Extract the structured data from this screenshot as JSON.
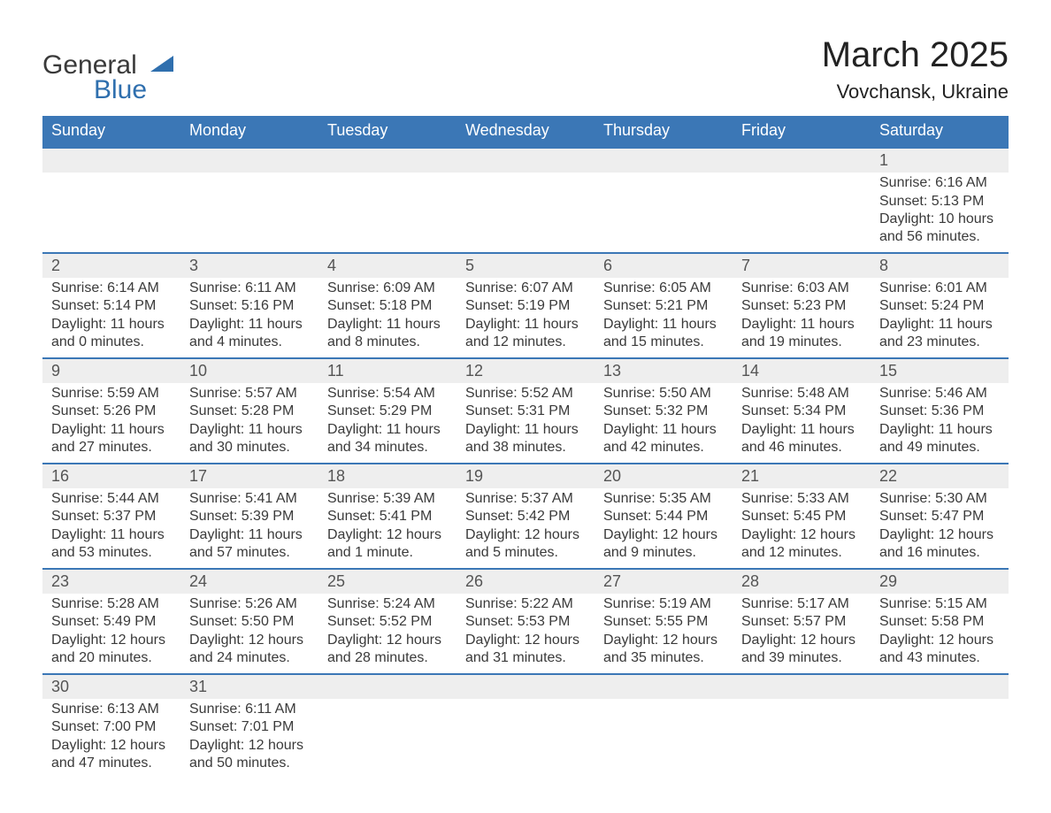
{
  "logo": {
    "line1": "General",
    "line2": "Blue"
  },
  "header": {
    "title": "March 2025",
    "location": "Vovchansk, Ukraine"
  },
  "style": {
    "accent": "#3b77b6",
    "row_bg": "#eeeeee",
    "text": "#3a3a3a",
    "title_fontsize": 40,
    "header_fontsize": 18,
    "cell_fontsize": 16
  },
  "calendar": {
    "columns": [
      "Sunday",
      "Monday",
      "Tuesday",
      "Wednesday",
      "Thursday",
      "Friday",
      "Saturday"
    ],
    "weeks": [
      [
        null,
        null,
        null,
        null,
        null,
        null,
        {
          "day": "1",
          "sunrise": "Sunrise: 6:16 AM",
          "sunset": "Sunset: 5:13 PM",
          "daylight1": "Daylight: 10 hours",
          "daylight2": "and 56 minutes."
        }
      ],
      [
        {
          "day": "2",
          "sunrise": "Sunrise: 6:14 AM",
          "sunset": "Sunset: 5:14 PM",
          "daylight1": "Daylight: 11 hours",
          "daylight2": "and 0 minutes."
        },
        {
          "day": "3",
          "sunrise": "Sunrise: 6:11 AM",
          "sunset": "Sunset: 5:16 PM",
          "daylight1": "Daylight: 11 hours",
          "daylight2": "and 4 minutes."
        },
        {
          "day": "4",
          "sunrise": "Sunrise: 6:09 AM",
          "sunset": "Sunset: 5:18 PM",
          "daylight1": "Daylight: 11 hours",
          "daylight2": "and 8 minutes."
        },
        {
          "day": "5",
          "sunrise": "Sunrise: 6:07 AM",
          "sunset": "Sunset: 5:19 PM",
          "daylight1": "Daylight: 11 hours",
          "daylight2": "and 12 minutes."
        },
        {
          "day": "6",
          "sunrise": "Sunrise: 6:05 AM",
          "sunset": "Sunset: 5:21 PM",
          "daylight1": "Daylight: 11 hours",
          "daylight2": "and 15 minutes."
        },
        {
          "day": "7",
          "sunrise": "Sunrise: 6:03 AM",
          "sunset": "Sunset: 5:23 PM",
          "daylight1": "Daylight: 11 hours",
          "daylight2": "and 19 minutes."
        },
        {
          "day": "8",
          "sunrise": "Sunrise: 6:01 AM",
          "sunset": "Sunset: 5:24 PM",
          "daylight1": "Daylight: 11 hours",
          "daylight2": "and 23 minutes."
        }
      ],
      [
        {
          "day": "9",
          "sunrise": "Sunrise: 5:59 AM",
          "sunset": "Sunset: 5:26 PM",
          "daylight1": "Daylight: 11 hours",
          "daylight2": "and 27 minutes."
        },
        {
          "day": "10",
          "sunrise": "Sunrise: 5:57 AM",
          "sunset": "Sunset: 5:28 PM",
          "daylight1": "Daylight: 11 hours",
          "daylight2": "and 30 minutes."
        },
        {
          "day": "11",
          "sunrise": "Sunrise: 5:54 AM",
          "sunset": "Sunset: 5:29 PM",
          "daylight1": "Daylight: 11 hours",
          "daylight2": "and 34 minutes."
        },
        {
          "day": "12",
          "sunrise": "Sunrise: 5:52 AM",
          "sunset": "Sunset: 5:31 PM",
          "daylight1": "Daylight: 11 hours",
          "daylight2": "and 38 minutes."
        },
        {
          "day": "13",
          "sunrise": "Sunrise: 5:50 AM",
          "sunset": "Sunset: 5:32 PM",
          "daylight1": "Daylight: 11 hours",
          "daylight2": "and 42 minutes."
        },
        {
          "day": "14",
          "sunrise": "Sunrise: 5:48 AM",
          "sunset": "Sunset: 5:34 PM",
          "daylight1": "Daylight: 11 hours",
          "daylight2": "and 46 minutes."
        },
        {
          "day": "15",
          "sunrise": "Sunrise: 5:46 AM",
          "sunset": "Sunset: 5:36 PM",
          "daylight1": "Daylight: 11 hours",
          "daylight2": "and 49 minutes."
        }
      ],
      [
        {
          "day": "16",
          "sunrise": "Sunrise: 5:44 AM",
          "sunset": "Sunset: 5:37 PM",
          "daylight1": "Daylight: 11 hours",
          "daylight2": "and 53 minutes."
        },
        {
          "day": "17",
          "sunrise": "Sunrise: 5:41 AM",
          "sunset": "Sunset: 5:39 PM",
          "daylight1": "Daylight: 11 hours",
          "daylight2": "and 57 minutes."
        },
        {
          "day": "18",
          "sunrise": "Sunrise: 5:39 AM",
          "sunset": "Sunset: 5:41 PM",
          "daylight1": "Daylight: 12 hours",
          "daylight2": "and 1 minute."
        },
        {
          "day": "19",
          "sunrise": "Sunrise: 5:37 AM",
          "sunset": "Sunset: 5:42 PM",
          "daylight1": "Daylight: 12 hours",
          "daylight2": "and 5 minutes."
        },
        {
          "day": "20",
          "sunrise": "Sunrise: 5:35 AM",
          "sunset": "Sunset: 5:44 PM",
          "daylight1": "Daylight: 12 hours",
          "daylight2": "and 9 minutes."
        },
        {
          "day": "21",
          "sunrise": "Sunrise: 5:33 AM",
          "sunset": "Sunset: 5:45 PM",
          "daylight1": "Daylight: 12 hours",
          "daylight2": "and 12 minutes."
        },
        {
          "day": "22",
          "sunrise": "Sunrise: 5:30 AM",
          "sunset": "Sunset: 5:47 PM",
          "daylight1": "Daylight: 12 hours",
          "daylight2": "and 16 minutes."
        }
      ],
      [
        {
          "day": "23",
          "sunrise": "Sunrise: 5:28 AM",
          "sunset": "Sunset: 5:49 PM",
          "daylight1": "Daylight: 12 hours",
          "daylight2": "and 20 minutes."
        },
        {
          "day": "24",
          "sunrise": "Sunrise: 5:26 AM",
          "sunset": "Sunset: 5:50 PM",
          "daylight1": "Daylight: 12 hours",
          "daylight2": "and 24 minutes."
        },
        {
          "day": "25",
          "sunrise": "Sunrise: 5:24 AM",
          "sunset": "Sunset: 5:52 PM",
          "daylight1": "Daylight: 12 hours",
          "daylight2": "and 28 minutes."
        },
        {
          "day": "26",
          "sunrise": "Sunrise: 5:22 AM",
          "sunset": "Sunset: 5:53 PM",
          "daylight1": "Daylight: 12 hours",
          "daylight2": "and 31 minutes."
        },
        {
          "day": "27",
          "sunrise": "Sunrise: 5:19 AM",
          "sunset": "Sunset: 5:55 PM",
          "daylight1": "Daylight: 12 hours",
          "daylight2": "and 35 minutes."
        },
        {
          "day": "28",
          "sunrise": "Sunrise: 5:17 AM",
          "sunset": "Sunset: 5:57 PM",
          "daylight1": "Daylight: 12 hours",
          "daylight2": "and 39 minutes."
        },
        {
          "day": "29",
          "sunrise": "Sunrise: 5:15 AM",
          "sunset": "Sunset: 5:58 PM",
          "daylight1": "Daylight: 12 hours",
          "daylight2": "and 43 minutes."
        }
      ],
      [
        {
          "day": "30",
          "sunrise": "Sunrise: 6:13 AM",
          "sunset": "Sunset: 7:00 PM",
          "daylight1": "Daylight: 12 hours",
          "daylight2": "and 47 minutes."
        },
        {
          "day": "31",
          "sunrise": "Sunrise: 6:11 AM",
          "sunset": "Sunset: 7:01 PM",
          "daylight1": "Daylight: 12 hours",
          "daylight2": "and 50 minutes."
        },
        null,
        null,
        null,
        null,
        null
      ]
    ]
  }
}
